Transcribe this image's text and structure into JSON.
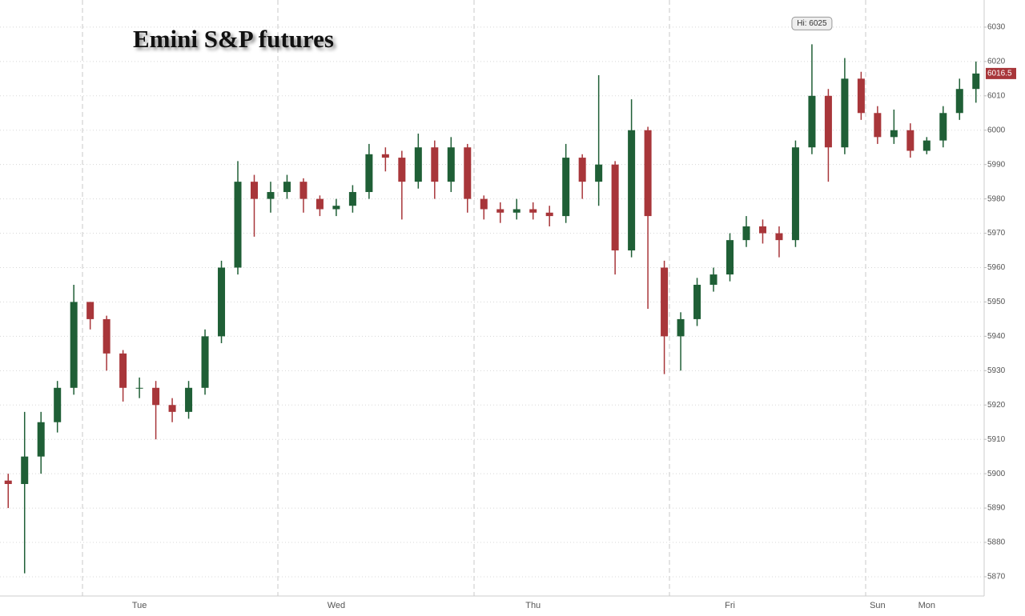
{
  "chart_data": {
    "type": "candlestick",
    "title": "Emini S&P futures",
    "categories": [
      null,
      null,
      null,
      null,
      null,
      null,
      null,
      null,
      "Tue",
      null,
      null,
      null,
      null,
      null,
      null,
      null,
      null,
      null,
      null,
      null,
      "Wed",
      null,
      null,
      null,
      null,
      null,
      null,
      null,
      null,
      null,
      null,
      null,
      "Thu",
      null,
      null,
      null,
      null,
      null,
      null,
      null,
      null,
      null,
      null,
      null,
      "Fri",
      null,
      null,
      null,
      null,
      null,
      null,
      null,
      null,
      "Sun",
      null,
      null,
      "Mon",
      null,
      null,
      null
    ],
    "open": [
      5898,
      5897,
      5905,
      5915,
      5925,
      5950,
      5945,
      5935,
      5925,
      5925,
      5920,
      5918,
      5925,
      5940,
      5960,
      5985,
      5980,
      5982,
      5985,
      5980,
      5977,
      5978,
      5982,
      5993,
      5992,
      5985,
      5995,
      5985,
      5995,
      5980,
      5977,
      5976,
      5977,
      5976,
      5975,
      5992,
      5985,
      5990,
      5965,
      6000,
      5960,
      5940,
      5945,
      5955,
      5958,
      5968,
      5972,
      5970,
      5968,
      5995,
      6010,
      5995,
      6015,
      6005,
      5998,
      6000,
      5994,
      5997,
      6005,
      6012
    ],
    "high": [
      5900,
      5918,
      5918,
      5927,
      5955,
      5950,
      5946,
      5936,
      5928,
      5927,
      5922,
      5927,
      5942,
      5962,
      5991,
      5987,
      5985,
      5987,
      5986,
      5981,
      5980,
      5984,
      5996,
      5995,
      5994,
      5999,
      5997,
      5998,
      5996,
      5981,
      5979,
      5980,
      5979,
      5978,
      5996,
      5993,
      6016,
      5991,
      6009,
      6001,
      5962,
      5947,
      5957,
      5960,
      5970,
      5975,
      5974,
      5972,
      5997,
      6025,
      6012,
      6021,
      6017,
      6007,
      6006,
      6002,
      5998,
      6007,
      6015,
      6020
    ],
    "low": [
      5890,
      5871,
      5900,
      5912,
      5923,
      5942,
      5930,
      5921,
      5922,
      5910,
      5915,
      5916,
      5923,
      5938,
      5958,
      5969,
      5976,
      5980,
      5976,
      5975,
      5975,
      5976,
      5980,
      5988,
      5974,
      5983,
      5980,
      5982,
      5976,
      5974,
      5973,
      5974,
      5974,
      5972,
      5973,
      5980,
      5978,
      5958,
      5963,
      5948,
      5929,
      5930,
      5943,
      5953,
      5956,
      5966,
      5967,
      5963,
      5966,
      5993,
      5985,
      5993,
      6003,
      5996,
      5996,
      5992,
      5993,
      5995,
      6003,
      6008
    ],
    "close": [
      5897,
      5905,
      5915,
      5925,
      5950,
      5945,
      5935,
      5925,
      5925,
      5920,
      5918,
      5925,
      5940,
      5960,
      5985,
      5980,
      5982,
      5985,
      5980,
      5977,
      5978,
      5982,
      5993,
      5992,
      5985,
      5995,
      5985,
      5995,
      5980,
      5977,
      5976,
      5977,
      5976,
      5975,
      5992,
      5985,
      5990,
      5965,
      6000,
      5975,
      5940,
      5945,
      5955,
      5958,
      5968,
      5972,
      5970,
      5968,
      5995,
      6010,
      5995,
      6015,
      6005,
      5998,
      6000,
      5994,
      5997,
      6005,
      6012,
      6016.5
    ],
    "up_color": "#1f5f36",
    "down_color": "#a8363a",
    "ylim": [
      5864.4,
      6037.9
    ],
    "yticks": [
      5870,
      5880,
      5890,
      5900,
      5910,
      5920,
      5930,
      5940,
      5950,
      5960,
      5970,
      5980,
      5990,
      6000,
      6010,
      6020,
      6030
    ],
    "grid": true,
    "high_annotation": "Hi: 6025"
  }
}
